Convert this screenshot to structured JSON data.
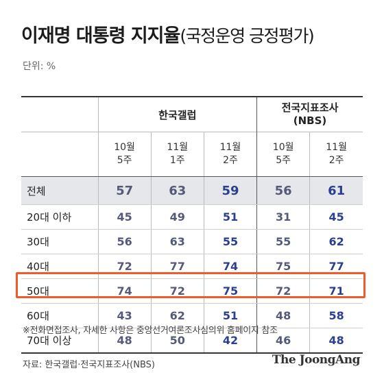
{
  "title": "이재명 대통령 지지율",
  "subtitle": "(국정운영 긍정평가)",
  "unit": "단위: %",
  "groups": [
    {
      "name": "한국갤럽",
      "line2": ""
    },
    {
      "name": "전국지표조사",
      "line2": "(NBS)"
    }
  ],
  "periods": [
    {
      "l1": "10월",
      "l2": "5주"
    },
    {
      "l1": "11월",
      "l2": "1주"
    },
    {
      "l1": "11월",
      "l2": "2주"
    },
    {
      "l1": "10월",
      "l2": "5주"
    },
    {
      "l1": "11월",
      "l2": "2주"
    }
  ],
  "chart_data": {
    "type": "table",
    "title": "이재명 대통령 지지율",
    "subtitle": "(국정운영 긍정평가)",
    "columns": [
      "한국갤럽 10월 5주",
      "한국갤럽 11월 1주",
      "한국갤럽 11월 2주",
      "전국지표조사(NBS) 10월 5주",
      "전국지표조사(NBS) 11월 2주"
    ],
    "rows": [
      {
        "label": "전체",
        "values": [
          "57",
          "63",
          "59",
          "56",
          "61"
        ]
      },
      {
        "label": "20대 이하",
        "values": [
          "45",
          "49",
          "51",
          "31",
          "45"
        ]
      },
      {
        "label": "30대",
        "values": [
          "56",
          "63",
          "55",
          "55",
          "62"
        ]
      },
      {
        "label": "40대",
        "values": [
          "72",
          "77",
          "74",
          "75",
          "77"
        ]
      },
      {
        "label": "50대",
        "values": [
          "74",
          "72",
          "75",
          "72",
          "71"
        ]
      },
      {
        "label": "60대",
        "values": [
          "43",
          "62",
          "51",
          "48",
          "58"
        ]
      },
      {
        "label": "70대 이상",
        "values": [
          "48",
          "50",
          "42",
          "46",
          "48"
        ]
      }
    ]
  },
  "note": "※전화면접조사, 자세한 사항은 중앙선거여론조사심의위 홈페이지 참조",
  "source": "자료: 한국갤럽·전국지표조사(NBS)",
  "logo": "The JoongAng",
  "colors": {
    "highlight": "#f25a29",
    "latest": "#2a3f8f",
    "value": "#555a78",
    "total_bg": "#e5e7ea"
  }
}
